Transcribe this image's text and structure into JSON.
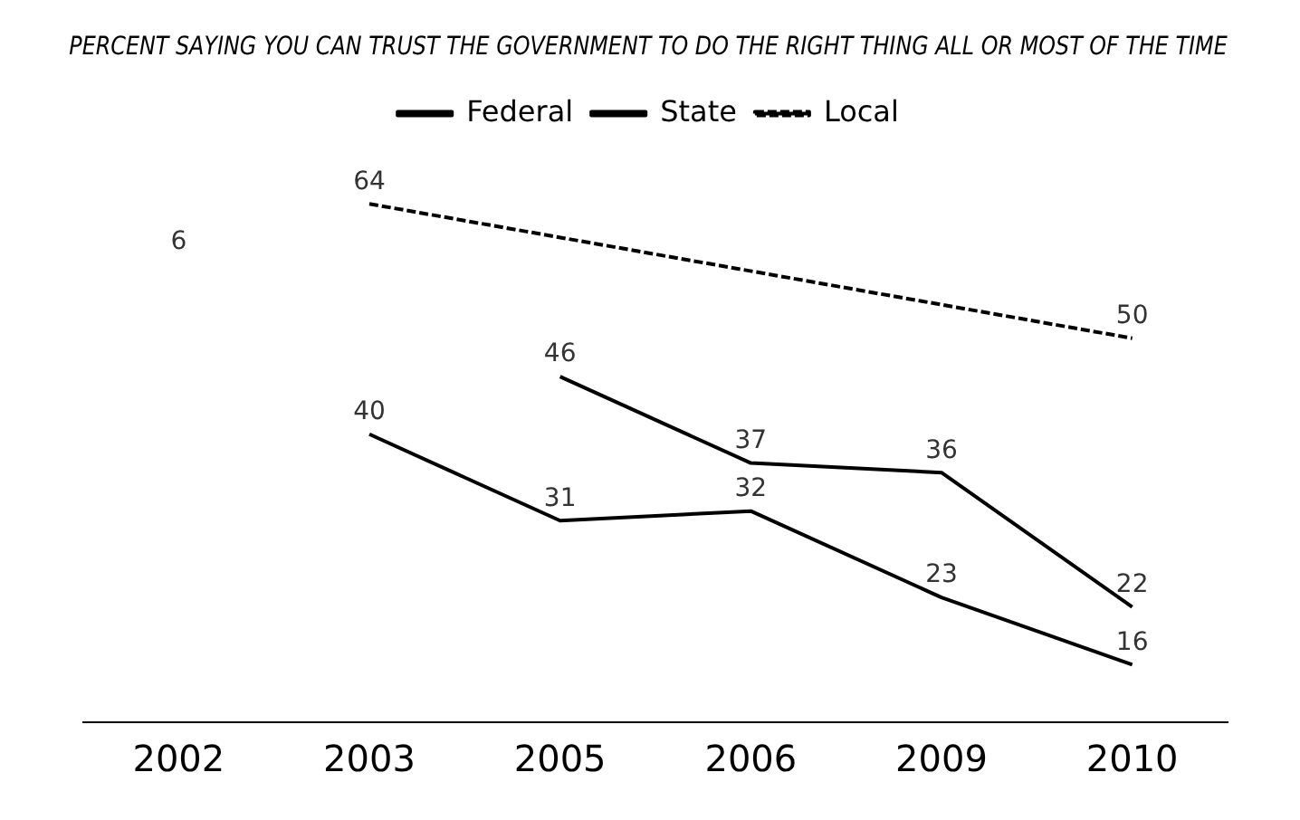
{
  "chart_data": {
    "type": "line",
    "title": "PERCENT SAYING YOU CAN TRUST THE GOVERNMENT TO DO THE RIGHT THING ALL OR MOST OF THE TIME",
    "categories": [
      "2002",
      "2003",
      "2005",
      "2006",
      "2009",
      "2010"
    ],
    "series": [
      {
        "name": "Federal",
        "color": "#000000",
        "values": [
          null,
          40,
          31,
          32,
          23,
          16
        ],
        "line_style": "solid"
      },
      {
        "name": "State",
        "color": "#000000",
        "values": [
          null,
          null,
          46,
          37,
          36,
          22
        ],
        "line_style": "solid"
      },
      {
        "name": "Local",
        "color": "#000000",
        "values": [
          null,
          64,
          null,
          null,
          null,
          50
        ],
        "line_style": "dashed"
      }
    ],
    "annotations": [
      "6"
    ],
    "data_labels": true,
    "legend": "top",
    "grid": false,
    "marker": "none",
    "relative": false
  }
}
